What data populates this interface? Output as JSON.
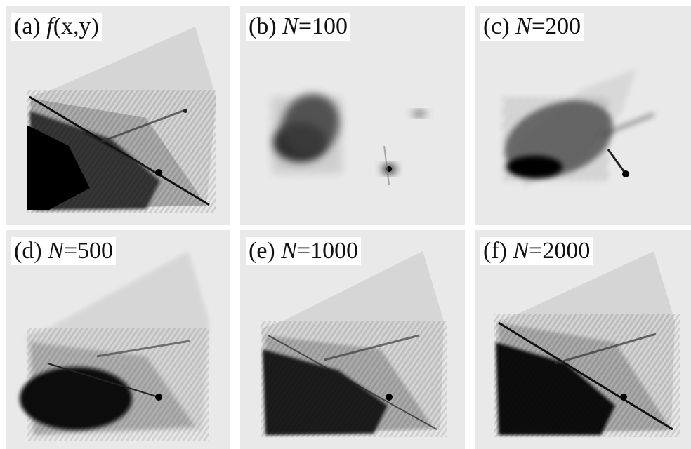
{
  "panels": [
    {
      "id": "a",
      "letter": "(a)",
      "func": "f",
      "args": "(x,y)",
      "kind": "full"
    },
    {
      "id": "b",
      "letter": "(b)",
      "var": "N",
      "value": "=100",
      "kind": "n100"
    },
    {
      "id": "c",
      "letter": "(c)",
      "var": "N",
      "value": "=200",
      "kind": "n200"
    },
    {
      "id": "d",
      "letter": "(d)",
      "var": "N",
      "value": "=500",
      "kind": "soft"
    },
    {
      "id": "e",
      "letter": "(e)",
      "var": "N",
      "value": "=1000",
      "kind": "mid"
    },
    {
      "id": "f",
      "letter": "(f)",
      "var": "N",
      "value": "=2000",
      "kind": "full"
    }
  ],
  "colors": {
    "background": "#e9e9e9",
    "ink": "#000000",
    "label_bg": "#ffffff"
  }
}
